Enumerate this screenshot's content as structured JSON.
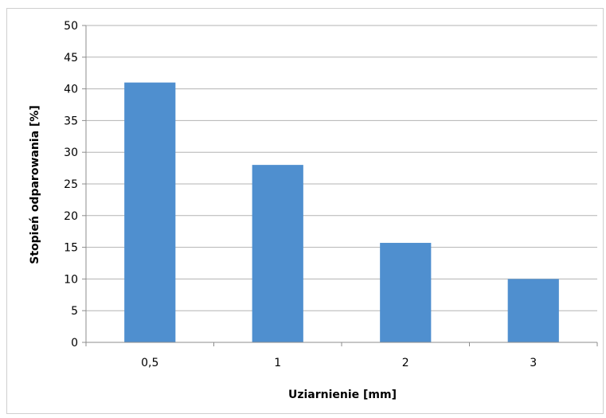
{
  "chart_data": {
    "type": "bar",
    "title": "",
    "xlabel": "Uziarnienie [mm]",
    "ylabel": "Stopień odparowania [%]",
    "categories": [
      "0,5",
      "1",
      "2",
      "3"
    ],
    "values": [
      41,
      28,
      15.7,
      10
    ],
    "ylim": [
      0,
      50
    ],
    "yticks": [
      "0",
      "5",
      "10",
      "15",
      "20",
      "25",
      "30",
      "35",
      "40",
      "45",
      "50"
    ],
    "grid": true,
    "legend": "none",
    "bar_color": "#4f8fcf",
    "grid_color": "#b3b3b3",
    "axis_color": "#8c8c8c"
  }
}
